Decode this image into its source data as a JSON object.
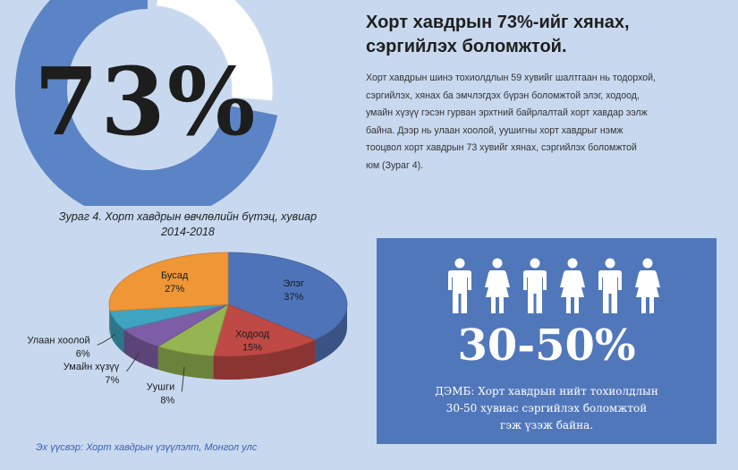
{
  "infographic": {
    "big_percent": "73%",
    "donut_value": 73,
    "headline_line1": "Хорт хавдрын 73%-ийг хянах,",
    "headline_line2": "сэргийлэх боломжтой.",
    "body_lines": [
      "Хорт хавдрын шинэ тохиолдлын 59 хувийг шалтгаан нь тодорхой,",
      "сэргийлэх, хянах ба эмчлэгдэх бүрэн боломжтой элэг, ходоод,",
      "умайн хүзүү гэсэн гурван эрхтний байрлалтай  хорт хавдар ээлж",
      "байна.  Дээр нь улаан хоолой, уушигны хорт хавдрыг нэмж",
      "тооцвол хорт  хавдрын 73 хувийг хянах, сэргийлэх боломжтой",
      "юм (Зураг 4)."
    ],
    "source": "Эх үүсвэр:  Хорт хавдрын үзүүлэлт, Монгол улс"
  },
  "panel": {
    "range": "30-50%",
    "text_lines": [
      "ДЭМБ: Хорт хавдрын нийт тохиолдлын",
      "30-50 хувиас сэргийлэх боломжтой",
      "гэж үзэж байна."
    ],
    "figures": [
      "male",
      "female",
      "male",
      "female",
      "male",
      "female"
    ]
  },
  "colors": {
    "background": "#c8d9ef",
    "donut": "#5b84c6",
    "panel": "#5177bb"
  },
  "chart_data": {
    "type": "pie",
    "title_line1": "Зураг 4. Хорт хавдрын өвчлөлийн бүтэц, хувиар",
    "title_line2": "2014-2018",
    "slices": [
      {
        "name": "Элэг",
        "value": 37,
        "label": "37%",
        "color": "#4f73b8"
      },
      {
        "name": "Ходоод",
        "value": 15,
        "label": "15%",
        "color": "#bf4a45"
      },
      {
        "name": "Уушги",
        "value": 8,
        "label": "8%",
        "color": "#94b552"
      },
      {
        "name": "Умайн хүзүү",
        "value": 7,
        "label": "7%",
        "color": "#7d5ea6"
      },
      {
        "name": "Улаан хоолой",
        "value": 6,
        "label": "6%",
        "color": "#3fa4c0"
      },
      {
        "name": "Бусад",
        "value": 27,
        "label": "27%",
        "color": "#ef9637"
      }
    ]
  }
}
